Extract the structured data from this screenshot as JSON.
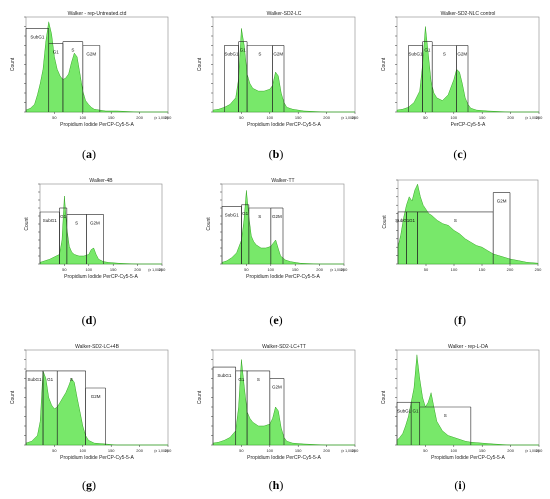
{
  "figure": {
    "panels": [
      {
        "id": "a",
        "caption": "a",
        "title": "Walker - rep-Untreated.ctd",
        "ylabel": "Count",
        "xlabel": "Propidium Iodide PerCP-Cy5-5-A",
        "x_unit": "(x 1,000)",
        "x_ticks": [
          "50",
          "100",
          "150",
          "200",
          "250"
        ],
        "gates": [
          "SubG1",
          "G1",
          "S",
          "G2M"
        ]
      },
      {
        "id": "b",
        "caption": "b",
        "title": "Walker-SD2-LC",
        "ylabel": "Count",
        "xlabel": "Propidium Iodide PerCP-Cy5-5-A",
        "x_unit": "(x 1,000)",
        "x_ticks": [
          "50",
          "100",
          "150",
          "200",
          "250"
        ],
        "gates": [
          "SubG1",
          "G1",
          "S",
          "G2M"
        ]
      },
      {
        "id": "c",
        "caption": "c",
        "title": "Walker-SD2-NLC control",
        "ylabel": "Count",
        "xlabel": "PerCP-Cy5-5-A",
        "x_unit": "(x 1,000)",
        "x_ticks": [
          "50",
          "100",
          "150",
          "200",
          "250"
        ],
        "gates": [
          "SubG1",
          "G1",
          "S",
          "G2M"
        ]
      },
      {
        "id": "d",
        "caption": "d",
        "title": "Walker-4B",
        "ylabel": "Count",
        "xlabel": "Propidium Iodide PerCP-Cy5-5-A",
        "x_unit": "(x 1,000)",
        "x_ticks": [
          "50",
          "100",
          "150",
          "200",
          "250"
        ],
        "gates": [
          "SubG1",
          "G1",
          "S",
          "G2M"
        ]
      },
      {
        "id": "e",
        "caption": "e",
        "title": "Walker-TT",
        "ylabel": "Count",
        "xlabel": "Propidium Iodide PerCP-Cy5-5-A",
        "x_unit": "(x 1,000)",
        "x_ticks": [
          "50",
          "100",
          "150",
          "200",
          "250"
        ],
        "gates": [
          "SubG1",
          "G1",
          "S",
          "G2M"
        ]
      },
      {
        "id": "f",
        "caption": "f",
        "title": "",
        "ylabel": "Count",
        "xlabel": "",
        "x_unit": "",
        "x_ticks": [
          "50",
          "100",
          "150",
          "200",
          "250"
        ],
        "gates": [
          "SubG1",
          "G1",
          "S",
          "G2M"
        ]
      },
      {
        "id": "g",
        "caption": "g",
        "title": "Walker-SD2-LC+4B",
        "ylabel": "Count",
        "xlabel": "Propidium Iodide PerCP-Cy5-5-A",
        "x_unit": "(x 1,000)",
        "x_ticks": [
          "50",
          "100",
          "150",
          "200",
          "250"
        ],
        "gates": [
          "SubG1",
          "G1",
          "S",
          "G2M"
        ]
      },
      {
        "id": "h",
        "caption": "h",
        "title": "Walker-SD2-LC+TT",
        "ylabel": "Count",
        "xlabel": "Propidium Iodide PerCP-Cy5-5-A",
        "x_unit": "(x 1,000)",
        "x_ticks": [
          "50",
          "100",
          "150",
          "200",
          "250"
        ],
        "gates": [
          "SubG1",
          "G1",
          "S",
          "G2M"
        ]
      },
      {
        "id": "i",
        "caption": "i",
        "title": "Walker - rep-L-DA",
        "ylabel": "Count",
        "xlabel": "Propidium Iodide PerCP-Cy5-5-A",
        "x_unit": "(x 1,000)",
        "x_ticks": [
          "50",
          "100",
          "150",
          "200",
          "250"
        ],
        "gates": [
          "SubG1",
          "G1",
          "S"
        ]
      }
    ]
  },
  "colors": {
    "fill": "#78e86a",
    "stroke": "#33a623",
    "axis": "#333333",
    "gate": "#222222"
  },
  "chart_data": [
    {
      "type": "area",
      "panel": "a",
      "title": "Walker - rep-Untreated.ctd",
      "xlabel": "Propidium Iodide PerCP-Cy5-5-A",
      "ylabel": "Count",
      "xlim": [
        0,
        250
      ],
      "ylim": [
        0,
        100
      ],
      "x": [
        0,
        8,
        15,
        20,
        25,
        30,
        35,
        40,
        45,
        50,
        55,
        60,
        65,
        70,
        75,
        80,
        85,
        90,
        95,
        100,
        105,
        110,
        115,
        120,
        130,
        140,
        160,
        200,
        250
      ],
      "y": [
        2,
        4,
        8,
        18,
        30,
        45,
        75,
        95,
        82,
        58,
        45,
        38,
        34,
        36,
        40,
        52,
        62,
        58,
        40,
        22,
        12,
        8,
        5,
        3,
        2,
        1,
        1,
        0,
        0
      ]
    },
    {
      "type": "area",
      "panel": "b",
      "title": "Walker-SD2-LC",
      "xlabel": "Propidium Iodide PerCP-Cy5-5-A",
      "ylabel": "Count",
      "xlim": [
        0,
        250
      ],
      "ylim": [
        0,
        100
      ],
      "x": [
        0,
        10,
        20,
        30,
        40,
        45,
        50,
        55,
        60,
        65,
        70,
        80,
        90,
        100,
        105,
        110,
        115,
        120,
        125,
        130,
        140,
        160,
        200,
        250
      ],
      "y": [
        2,
        3,
        5,
        8,
        15,
        35,
        88,
        70,
        40,
        30,
        25,
        22,
        22,
        24,
        28,
        42,
        38,
        20,
        10,
        5,
        3,
        1,
        0,
        0
      ]
    },
    {
      "type": "area",
      "panel": "c",
      "title": "Walker-SD2-NLC control",
      "xlabel": "PerCP-Cy5-5-A",
      "ylabel": "Count",
      "xlim": [
        0,
        250
      ],
      "ylim": [
        0,
        100
      ],
      "x": [
        0,
        10,
        20,
        30,
        40,
        45,
        50,
        55,
        60,
        65,
        70,
        80,
        90,
        100,
        105,
        110,
        115,
        120,
        125,
        130,
        140,
        160,
        200,
        250
      ],
      "y": [
        2,
        3,
        5,
        10,
        22,
        50,
        90,
        62,
        32,
        20,
        15,
        12,
        18,
        34,
        45,
        42,
        30,
        15,
        8,
        4,
        2,
        1,
        0,
        0
      ]
    },
    {
      "type": "area",
      "panel": "d",
      "title": "Walker-4B",
      "xlabel": "Propidium Iodide PerCP-Cy5-5-A",
      "ylabel": "Count",
      "xlim": [
        0,
        250
      ],
      "ylim": [
        0,
        100
      ],
      "x": [
        0,
        10,
        20,
        30,
        40,
        45,
        50,
        55,
        60,
        65,
        70,
        80,
        90,
        100,
        105,
        110,
        115,
        120,
        130,
        140,
        160,
        200,
        250
      ],
      "y": [
        2,
        4,
        6,
        9,
        12,
        30,
        85,
        45,
        22,
        15,
        12,
        10,
        10,
        12,
        18,
        20,
        12,
        6,
        3,
        2,
        1,
        0,
        0
      ]
    },
    {
      "type": "area",
      "panel": "e",
      "title": "Walker-TT",
      "xlabel": "Propidium Iodide PerCP-Cy5-5-A",
      "ylabel": "Count",
      "xlim": [
        0,
        250
      ],
      "ylim": [
        0,
        100
      ],
      "x": [
        0,
        10,
        20,
        30,
        40,
        45,
        50,
        55,
        60,
        65,
        70,
        80,
        90,
        100,
        105,
        110,
        115,
        120,
        130,
        140,
        160,
        200,
        250
      ],
      "y": [
        2,
        4,
        8,
        14,
        30,
        55,
        92,
        60,
        35,
        28,
        24,
        20,
        20,
        22,
        26,
        30,
        20,
        10,
        5,
        3,
        1,
        0,
        0
      ]
    },
    {
      "type": "area",
      "panel": "f",
      "title": "",
      "xlabel": "",
      "ylabel": "Count",
      "xlim": [
        0,
        250
      ],
      "ylim": [
        0,
        100
      ],
      "x": [
        0,
        5,
        10,
        15,
        20,
        25,
        30,
        35,
        40,
        45,
        50,
        55,
        60,
        70,
        80,
        90,
        100,
        110,
        120,
        130,
        140,
        150,
        160,
        170,
        180,
        190,
        200,
        215,
        230,
        250
      ],
      "y": [
        20,
        35,
        55,
        70,
        80,
        75,
        88,
        95,
        80,
        70,
        65,
        60,
        58,
        52,
        48,
        46,
        40,
        36,
        30,
        26,
        22,
        20,
        16,
        12,
        10,
        8,
        6,
        4,
        2,
        1
      ]
    },
    {
      "type": "area",
      "panel": "g",
      "title": "Walker-SD2-LC+4B",
      "xlabel": "Propidium Iodide PerCP-Cy5-5-A",
      "ylabel": "Count",
      "xlim": [
        0,
        250
      ],
      "ylim": [
        0,
        100
      ],
      "x": [
        0,
        10,
        20,
        25,
        30,
        35,
        40,
        45,
        50,
        55,
        60,
        65,
        70,
        75,
        80,
        85,
        90,
        95,
        100,
        105,
        110,
        120,
        140,
        160,
        200,
        250
      ],
      "y": [
        2,
        4,
        10,
        25,
        78,
        70,
        50,
        42,
        38,
        40,
        45,
        50,
        55,
        62,
        70,
        66,
        50,
        35,
        20,
        10,
        5,
        2,
        1,
        0,
        0,
        0
      ]
    },
    {
      "type": "area",
      "panel": "h",
      "title": "Walker-SD2-LC+TT",
      "xlabel": "Propidium Iodide PerCP-Cy5-5-A",
      "ylabel": "Count",
      "xlim": [
        0,
        250
      ],
      "ylim": [
        0,
        100
      ],
      "x": [
        0,
        10,
        20,
        30,
        40,
        45,
        50,
        55,
        60,
        65,
        70,
        80,
        90,
        100,
        105,
        110,
        115,
        120,
        125,
        130,
        140,
        160,
        200,
        250
      ],
      "y": [
        2,
        3,
        5,
        8,
        15,
        40,
        90,
        62,
        35,
        28,
        24,
        20,
        20,
        22,
        28,
        40,
        36,
        18,
        8,
        4,
        2,
        1,
        0,
        0
      ]
    },
    {
      "type": "area",
      "panel": "i",
      "title": "Walker - rep-L-DA",
      "xlabel": "Propidium Iodide PerCP-Cy5-5-A",
      "ylabel": "Count",
      "xlim": [
        0,
        250
      ],
      "ylim": [
        0,
        100
      ],
      "x": [
        0,
        5,
        10,
        15,
        20,
        25,
        30,
        35,
        40,
        45,
        50,
        55,
        60,
        65,
        70,
        80,
        90,
        100,
        110,
        120,
        130,
        150,
        170,
        200,
        250
      ],
      "y": [
        5,
        8,
        12,
        20,
        30,
        45,
        60,
        95,
        70,
        50,
        40,
        45,
        55,
        40,
        25,
        15,
        10,
        8,
        6,
        4,
        3,
        2,
        1,
        0,
        0
      ]
    }
  ]
}
